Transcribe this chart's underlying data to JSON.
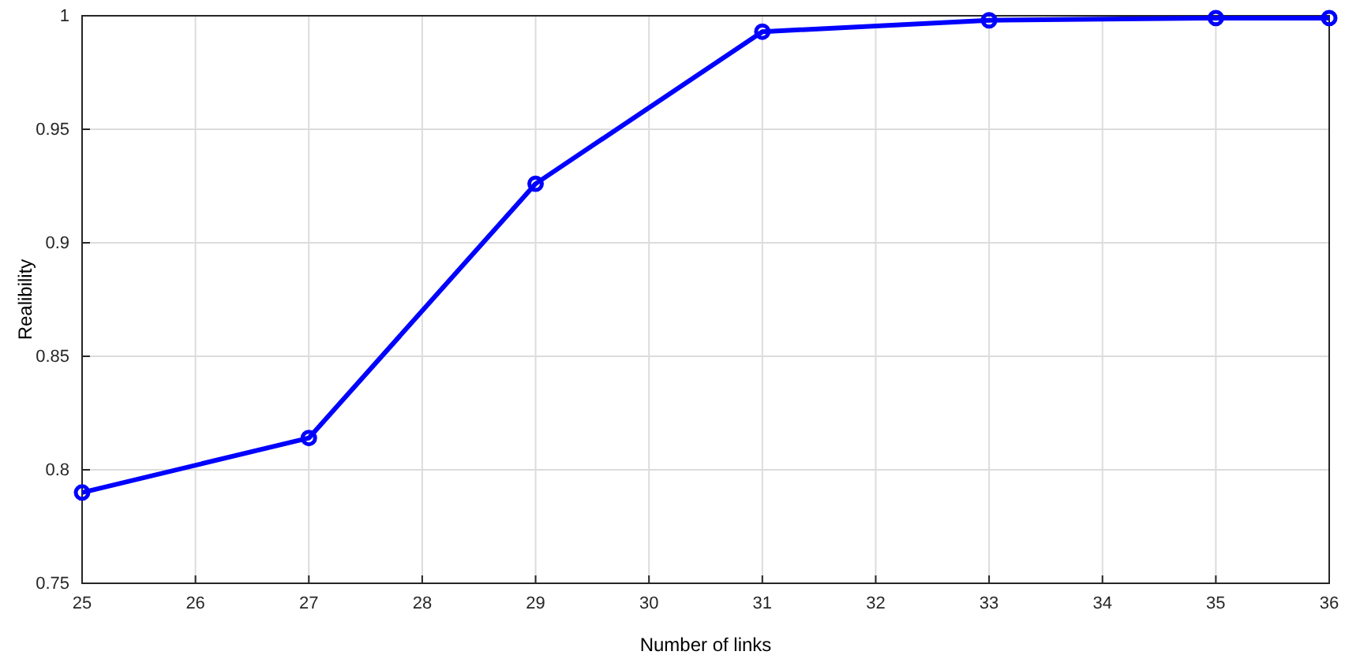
{
  "chart_data": {
    "type": "line",
    "xlabel": "Number of links",
    "ylabel": "Realibility",
    "x": [
      25,
      27,
      29,
      31,
      33,
      35,
      36
    ],
    "series": [
      {
        "color": "#0000ff",
        "values": [
          0.79,
          0.814,
          0.926,
          0.993,
          0.998,
          0.999,
          0.999
        ]
      }
    ],
    "xlim": [
      25,
      36
    ],
    "xticks": [
      25,
      26,
      27,
      28,
      29,
      30,
      31,
      32,
      33,
      34,
      35,
      36
    ],
    "ylim": [
      0.75,
      1
    ],
    "yticks": [
      0.75,
      0.8,
      0.85,
      0.9,
      0.95,
      1
    ],
    "grid": true,
    "marker": "circle",
    "line_style": "solid"
  }
}
